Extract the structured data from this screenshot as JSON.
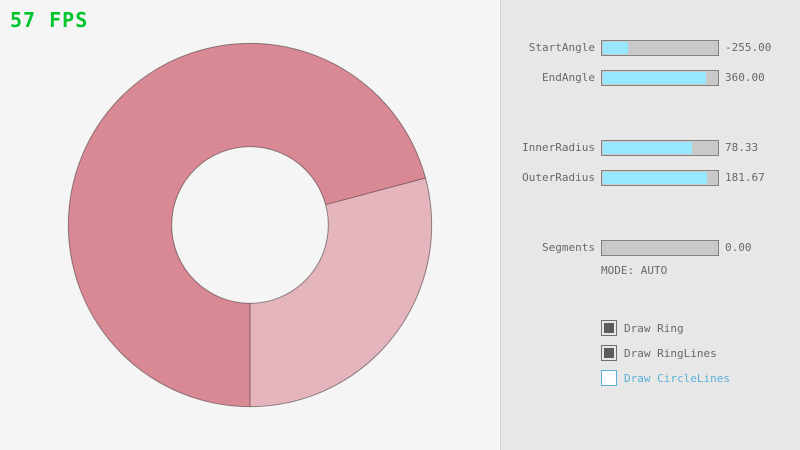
{
  "window": {
    "fps_label": "57 FPS"
  },
  "colors": {
    "background": "#F5F5F5",
    "panel_bg": "#E7E7E7",
    "ring_dark": "#D98994",
    "ring_light": "#E4B5BC",
    "ring_outline": "#00000066",
    "slider_fill": "#97E8FF",
    "slider_track": "#C9C9C9",
    "slider_border": "#838383",
    "text_gray": "#686868",
    "fps_green": "#00C62E",
    "checkbox_checked": "#5C5C5C",
    "focus_blue": "#5BB2D9"
  },
  "panel": {
    "sliders": [
      {
        "label": "StartAngle",
        "value": "-255.00",
        "fill_pct": 21.7
      },
      {
        "label": "EndAngle",
        "value": "360.00",
        "fill_pct": 90.0
      },
      {
        "label": "InnerRadius",
        "value": "78.33",
        "fill_pct": 78.3
      },
      {
        "label": "OuterRadius",
        "value": "181.67",
        "fill_pct": 90.8
      },
      {
        "label": "Segments",
        "value": "0.00",
        "fill_pct": 0
      }
    ],
    "mode_label": "MODE: AUTO",
    "checkboxes": [
      {
        "label": "Draw Ring",
        "checked": true,
        "focused": false
      },
      {
        "label": "Draw RingLines",
        "checked": true,
        "focused": false
      },
      {
        "label": "Draw CircleLines",
        "checked": false,
        "focused": true
      }
    ]
  }
}
